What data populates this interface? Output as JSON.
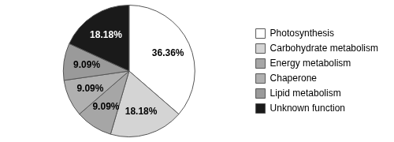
{
  "chart_data": {
    "type": "pie",
    "categories": [
      "Photosynthesis",
      "Carbohydrate metabolism",
      "Energy metabolism",
      "Chaperone",
      "Lipid metabolism",
      "Unknown function"
    ],
    "values": [
      36.36,
      18.18,
      9.09,
      9.09,
      9.09,
      18.18
    ],
    "value_labels": [
      "36.36%",
      "18.18%",
      "9.09%",
      "9.09%",
      "9.09%",
      "18.18%"
    ],
    "colors": [
      "#ffffff",
      "#d4d4d4",
      "#a6a6a6",
      "#b0b0b0",
      "#9a9a9a",
      "#1a1a1a"
    ],
    "legend": "right",
    "data_labels": true
  }
}
